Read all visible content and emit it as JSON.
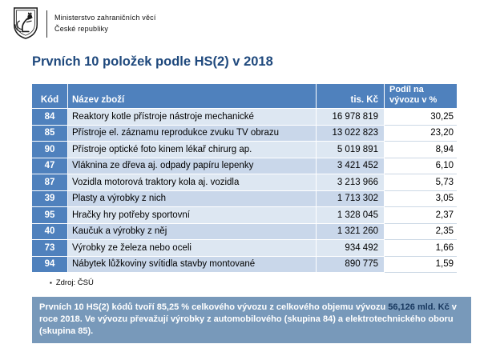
{
  "header": {
    "logo": "czech-coat-of-arms",
    "ministry_line1": "Ministerstvo zahraničních věcí",
    "ministry_line2": "České republiky"
  },
  "title": "Prvních 10 položek podle HS(2) v 2018",
  "table": {
    "columns": {
      "code": "Kód",
      "name": "Název zboží",
      "value": "tis. Kč",
      "share": "Podíl na vývozu v %"
    },
    "rows": [
      {
        "code": "84",
        "name": "Reaktory kotle přístroje nástroje mechanické",
        "value": "16 978 819",
        "share": "30,25"
      },
      {
        "code": "85",
        "name": "Přístroje el. záznamu reprodukce zvuku TV obrazu",
        "value": "13 022 823",
        "share": "23,20"
      },
      {
        "code": "90",
        "name": "Přístroje optické foto kinem lékař chirurg ap.",
        "value": "5 019 891",
        "share": "8,94"
      },
      {
        "code": "47",
        "name": "Vláknina ze dřeva aj. odpady papíru lepenky",
        "value": "3 421 452",
        "share": "6,10"
      },
      {
        "code": "87",
        "name": "Vozidla motorová traktory kola aj. vozidla",
        "value": "3 213 966",
        "share": "5,73"
      },
      {
        "code": "39",
        "name": "Plasty a výrobky z nich",
        "value": "1 713 302",
        "share": "3,05"
      },
      {
        "code": "95",
        "name": "Hračky hry potřeby sportovní",
        "value": "1 328 045",
        "share": "2,37"
      },
      {
        "code": "40",
        "name": "Kaučuk a výrobky z něj",
        "value": "1 321 260",
        "share": "2,35"
      },
      {
        "code": "73",
        "name": "Výrobky ze železa nebo oceli",
        "value": "934 492",
        "share": "1,66"
      },
      {
        "code": "94",
        "name": "Nábytek lůžkoviny svítidla stavby montované",
        "value": "890 775",
        "share": "1,59"
      }
    ]
  },
  "source": {
    "label": "Zdroj: ČSÚ"
  },
  "callout": {
    "segments": [
      {
        "text": "Prvních 10 HS(2) kódů tvoří 85,25 % celkového vývozu z celkového objemu vývozu ",
        "emphasis": false
      },
      {
        "text": "56,126 mld. Kč",
        "emphasis": true
      },
      {
        "text": " v roce 2018. Ve vývozu převažují výrobky z automobilového (skupina 84) a elektrotechnického oboru (skupina 85).",
        "emphasis": false
      }
    ]
  },
  "colors": {
    "title": "#1f497d",
    "table_header": "#4f81bd",
    "row_band_light": "#dde7f2",
    "row_band_dark": "#c9d7ea",
    "callout_bg": "#7899ba",
    "callout_emphasis": "#17375e"
  }
}
